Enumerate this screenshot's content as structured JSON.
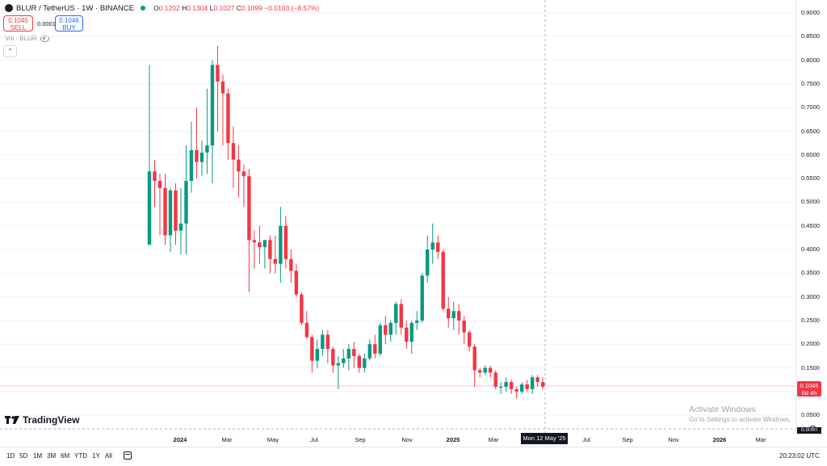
{
  "header": {
    "symbol": "BLUR / TetherUS · 1W · BINANCE",
    "ohlc": {
      "o_label": "O",
      "o": "0.1202",
      "h_label": "H",
      "h": "0.1304",
      "l_label": "L",
      "l": "0.1027",
      "c_label": "C",
      "c": "0.1099",
      "change": "−0.0103 (−8.57%)"
    }
  },
  "trade": {
    "sell_price": "0.1045",
    "sell_label": "SELL",
    "spread": "0.0001",
    "buy_price": "0.1046",
    "buy_label": "BUY"
  },
  "volume_label": "Vol · BLUR",
  "collapse_icon": "^",
  "price_axis": [
    "0.9000",
    "0.8500",
    "0.8000",
    "0.7500",
    "0.7000",
    "0.6500",
    "0.6000",
    "0.5500",
    "0.5000",
    "0.4500",
    "0.4000",
    "0.3500",
    "0.3000",
    "0.2500",
    "0.2000",
    "0.1500",
    "0.1000",
    "0.0500"
  ],
  "current_price": {
    "value": "0.1045",
    "countdown": "6d 4h"
  },
  "hidden_price": "0.0000",
  "time_axis": [
    {
      "label": "2024",
      "bold": true
    },
    {
      "label": "Mar"
    },
    {
      "label": "May"
    },
    {
      "label": "Jul"
    },
    {
      "label": "Sep"
    },
    {
      "label": "Nov"
    },
    {
      "label": "2025",
      "bold": true
    },
    {
      "label": "Mar"
    },
    {
      "label": "Jul"
    },
    {
      "label": "Sep"
    },
    {
      "label": "Nov"
    },
    {
      "label": "2026",
      "bold": true
    },
    {
      "label": "Mar"
    }
  ],
  "cursor_time": "Mon 12 May '25",
  "ranges": [
    "1D",
    "5D",
    "1M",
    "3M",
    "6M",
    "YTD",
    "1Y",
    "All"
  ],
  "clock": "20:23:02 UTC",
  "logo_text": "TradingView",
  "activate": {
    "title": "Activate Windows",
    "subtitle": "Go to Settings to activate Windows."
  },
  "colors": {
    "up": "#089981",
    "down": "#f23645",
    "grid": "#f0f3fa"
  },
  "chart_data": {
    "type": "candlestick",
    "title": "BLUR / TetherUS · 1W · BINANCE",
    "ylim": [
      0.0,
      0.9
    ],
    "candles": [
      {
        "o": 0.41,
        "h": 0.79,
        "l": 0.41,
        "c": 0.565
      },
      {
        "o": 0.565,
        "h": 0.59,
        "l": 0.49,
        "c": 0.545
      },
      {
        "o": 0.545,
        "h": 0.56,
        "l": 0.43,
        "c": 0.53
      },
      {
        "o": 0.53,
        "h": 0.56,
        "l": 0.41,
        "c": 0.43
      },
      {
        "o": 0.43,
        "h": 0.53,
        "l": 0.395,
        "c": 0.525
      },
      {
        "o": 0.525,
        "h": 0.54,
        "l": 0.41,
        "c": 0.44
      },
      {
        "o": 0.44,
        "h": 0.53,
        "l": 0.39,
        "c": 0.455
      },
      {
        "o": 0.455,
        "h": 0.62,
        "l": 0.39,
        "c": 0.545
      },
      {
        "o": 0.545,
        "h": 0.67,
        "l": 0.52,
        "c": 0.61
      },
      {
        "o": 0.61,
        "h": 0.7,
        "l": 0.55,
        "c": 0.585
      },
      {
        "o": 0.585,
        "h": 0.63,
        "l": 0.555,
        "c": 0.605
      },
      {
        "o": 0.605,
        "h": 0.74,
        "l": 0.56,
        "c": 0.62
      },
      {
        "o": 0.62,
        "h": 0.8,
        "l": 0.54,
        "c": 0.79
      },
      {
        "o": 0.79,
        "h": 0.83,
        "l": 0.65,
        "c": 0.755
      },
      {
        "o": 0.755,
        "h": 0.77,
        "l": 0.62,
        "c": 0.73
      },
      {
        "o": 0.73,
        "h": 0.74,
        "l": 0.59,
        "c": 0.625
      },
      {
        "o": 0.625,
        "h": 0.66,
        "l": 0.53,
        "c": 0.59
      },
      {
        "o": 0.59,
        "h": 0.62,
        "l": 0.51,
        "c": 0.565
      },
      {
        "o": 0.565,
        "h": 0.58,
        "l": 0.49,
        "c": 0.555
      },
      {
        "o": 0.555,
        "h": 0.57,
        "l": 0.31,
        "c": 0.42
      },
      {
        "o": 0.42,
        "h": 0.44,
        "l": 0.36,
        "c": 0.415
      },
      {
        "o": 0.415,
        "h": 0.45,
        "l": 0.37,
        "c": 0.405
      },
      {
        "o": 0.405,
        "h": 0.42,
        "l": 0.36,
        "c": 0.42
      },
      {
        "o": 0.42,
        "h": 0.43,
        "l": 0.35,
        "c": 0.38
      },
      {
        "o": 0.38,
        "h": 0.43,
        "l": 0.35,
        "c": 0.37
      },
      {
        "o": 0.37,
        "h": 0.49,
        "l": 0.33,
        "c": 0.45
      },
      {
        "o": 0.45,
        "h": 0.47,
        "l": 0.36,
        "c": 0.38
      },
      {
        "o": 0.38,
        "h": 0.4,
        "l": 0.33,
        "c": 0.355
      },
      {
        "o": 0.355,
        "h": 0.37,
        "l": 0.3,
        "c": 0.305
      },
      {
        "o": 0.305,
        "h": 0.31,
        "l": 0.24,
        "c": 0.245
      },
      {
        "o": 0.245,
        "h": 0.27,
        "l": 0.21,
        "c": 0.215
      },
      {
        "o": 0.215,
        "h": 0.22,
        "l": 0.14,
        "c": 0.165
      },
      {
        "o": 0.165,
        "h": 0.21,
        "l": 0.15,
        "c": 0.19
      },
      {
        "o": 0.19,
        "h": 0.23,
        "l": 0.175,
        "c": 0.22
      },
      {
        "o": 0.22,
        "h": 0.23,
        "l": 0.16,
        "c": 0.19
      },
      {
        "o": 0.19,
        "h": 0.195,
        "l": 0.14,
        "c": 0.155
      },
      {
        "o": 0.155,
        "h": 0.175,
        "l": 0.105,
        "c": 0.16
      },
      {
        "o": 0.16,
        "h": 0.19,
        "l": 0.15,
        "c": 0.17
      },
      {
        "o": 0.17,
        "h": 0.2,
        "l": 0.145,
        "c": 0.19
      },
      {
        "o": 0.19,
        "h": 0.205,
        "l": 0.15,
        "c": 0.175
      },
      {
        "o": 0.175,
        "h": 0.18,
        "l": 0.14,
        "c": 0.15
      },
      {
        "o": 0.15,
        "h": 0.18,
        "l": 0.14,
        "c": 0.17
      },
      {
        "o": 0.17,
        "h": 0.21,
        "l": 0.165,
        "c": 0.2
      },
      {
        "o": 0.2,
        "h": 0.22,
        "l": 0.17,
        "c": 0.18
      },
      {
        "o": 0.18,
        "h": 0.245,
        "l": 0.175,
        "c": 0.24
      },
      {
        "o": 0.24,
        "h": 0.26,
        "l": 0.2,
        "c": 0.22
      },
      {
        "o": 0.22,
        "h": 0.25,
        "l": 0.205,
        "c": 0.245
      },
      {
        "o": 0.245,
        "h": 0.29,
        "l": 0.22,
        "c": 0.285
      },
      {
        "o": 0.285,
        "h": 0.295,
        "l": 0.22,
        "c": 0.235
      },
      {
        "o": 0.235,
        "h": 0.25,
        "l": 0.19,
        "c": 0.205
      },
      {
        "o": 0.205,
        "h": 0.25,
        "l": 0.18,
        "c": 0.245
      },
      {
        "o": 0.245,
        "h": 0.27,
        "l": 0.23,
        "c": 0.25
      },
      {
        "o": 0.25,
        "h": 0.35,
        "l": 0.245,
        "c": 0.345
      },
      {
        "o": 0.345,
        "h": 0.43,
        "l": 0.33,
        "c": 0.4
      },
      {
        "o": 0.4,
        "h": 0.455,
        "l": 0.37,
        "c": 0.415
      },
      {
        "o": 0.415,
        "h": 0.43,
        "l": 0.38,
        "c": 0.395
      },
      {
        "o": 0.395,
        "h": 0.4,
        "l": 0.27,
        "c": 0.275
      },
      {
        "o": 0.275,
        "h": 0.3,
        "l": 0.235,
        "c": 0.255
      },
      {
        "o": 0.255,
        "h": 0.29,
        "l": 0.23,
        "c": 0.27
      },
      {
        "o": 0.27,
        "h": 0.285,
        "l": 0.22,
        "c": 0.25
      },
      {
        "o": 0.25,
        "h": 0.26,
        "l": 0.2,
        "c": 0.225
      },
      {
        "o": 0.225,
        "h": 0.23,
        "l": 0.185,
        "c": 0.195
      },
      {
        "o": 0.195,
        "h": 0.2,
        "l": 0.11,
        "c": 0.145
      },
      {
        "o": 0.145,
        "h": 0.15,
        "l": 0.13,
        "c": 0.14
      },
      {
        "o": 0.14,
        "h": 0.155,
        "l": 0.135,
        "c": 0.15
      },
      {
        "o": 0.15,
        "h": 0.155,
        "l": 0.13,
        "c": 0.14
      },
      {
        "o": 0.14,
        "h": 0.145,
        "l": 0.105,
        "c": 0.11
      },
      {
        "o": 0.11,
        "h": 0.12,
        "l": 0.095,
        "c": 0.11
      },
      {
        "o": 0.11,
        "h": 0.13,
        "l": 0.1,
        "c": 0.12
      },
      {
        "o": 0.12,
        "h": 0.125,
        "l": 0.095,
        "c": 0.105
      },
      {
        "o": 0.105,
        "h": 0.11,
        "l": 0.085,
        "c": 0.1
      },
      {
        "o": 0.1,
        "h": 0.12,
        "l": 0.095,
        "c": 0.115
      },
      {
        "o": 0.115,
        "h": 0.125,
        "l": 0.1,
        "c": 0.105
      },
      {
        "o": 0.105,
        "h": 0.135,
        "l": 0.095,
        "c": 0.13
      },
      {
        "o": 0.13,
        "h": 0.135,
        "l": 0.11,
        "c": 0.12
      },
      {
        "o": 0.12,
        "h": 0.13,
        "l": 0.105,
        "c": 0.11
      }
    ]
  }
}
